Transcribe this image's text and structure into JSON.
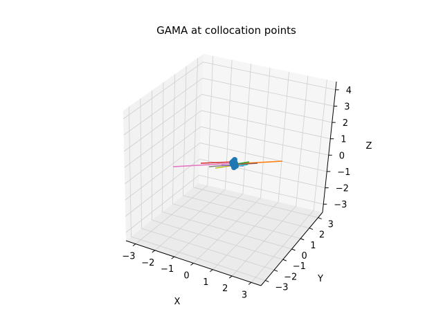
{
  "chart_data": {
    "type": "3d-line",
    "title": "GAMA at collocation points",
    "xlabel": "X",
    "ylabel": "Y",
    "zlabel": "Z",
    "xticks": [
      "−3",
      "−2",
      "−1",
      "0",
      "1",
      "2",
      "3"
    ],
    "yticks": [
      "−3",
      "−2",
      "−1",
      "0",
      "1",
      "2",
      "3"
    ],
    "zticks": [
      "−3",
      "−2",
      "−1",
      "0",
      "1",
      "2",
      "3",
      "4"
    ],
    "grid": true,
    "colors": {
      "points": "#1f77b4",
      "lines": [
        "#ff7f0e",
        "#2ca02c",
        "#d62728",
        "#9467bd",
        "#8c564b",
        "#e377c2",
        "#7f7f7f",
        "#bcbd22",
        "#17becf"
      ]
    },
    "collocation_points_marker": "blue dots clustered near origin"
  }
}
